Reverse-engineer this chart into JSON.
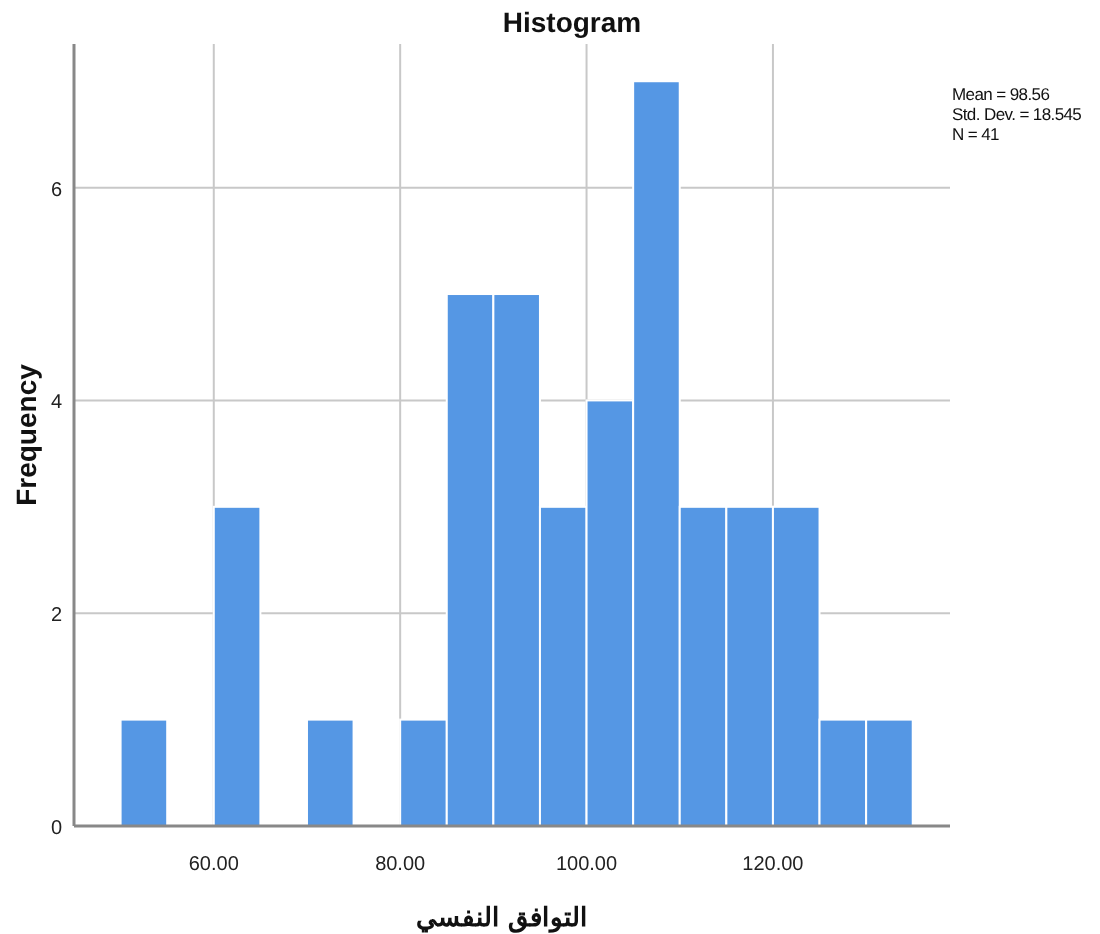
{
  "chart_data": {
    "type": "histogram",
    "title": "Histogram",
    "xlabel": "التوافق النفسي",
    "ylabel": "Frequency",
    "bins": [
      50,
      55,
      60,
      65,
      70,
      75,
      80,
      85,
      90,
      95,
      100,
      105,
      110,
      115,
      120,
      125,
      130,
      135
    ],
    "values": [
      1,
      0,
      3,
      0,
      1,
      0,
      1,
      5,
      5,
      3,
      4,
      7,
      3,
      3,
      3,
      1,
      1
    ],
    "color": "#5597e4",
    "xlim": [
      45,
      139
    ],
    "ylim": [
      0,
      7.35
    ],
    "xticks": [
      {
        "value": 60,
        "label": "60.00"
      },
      {
        "value": 80,
        "label": "80.00"
      },
      {
        "value": 100,
        "label": "100.00"
      },
      {
        "value": 120,
        "label": "120.00"
      }
    ],
    "yticks": [
      0,
      2,
      4,
      6
    ],
    "grid": true,
    "annotations": [
      "Mean = 98.56",
      "Std. Dev. = 18.545",
      "N = 41"
    ]
  }
}
